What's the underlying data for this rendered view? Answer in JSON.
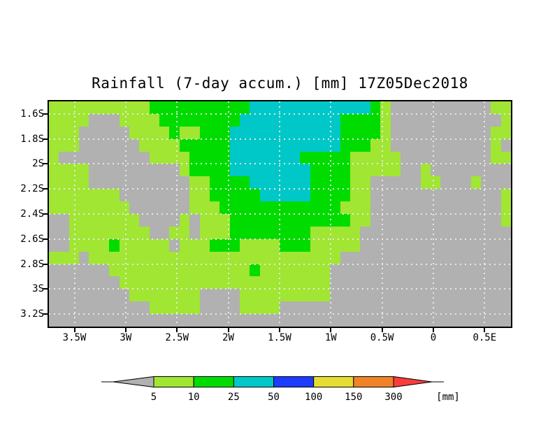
{
  "title": "Rainfall (7-day accum.) [mm] 17Z05Dec2018",
  "chart_data": {
    "type": "heatmap",
    "title": "Rainfall (7-day accum.) [mm] 17Z05Dec2018",
    "variable": "7-day accumulated rainfall",
    "unit_label": "[mm]",
    "timestamp_label": "17Z05Dec2018",
    "x_tick_labels": [
      "3.5W",
      "3W",
      "2.5W",
      "2W",
      "1.5W",
      "1W",
      "0.5W",
      "0",
      "0.5E"
    ],
    "y_tick_labels": [
      "1.6S",
      "1.8S",
      "2S",
      "2.2S",
      "2.4S",
      "2.6S",
      "2.8S",
      "3S",
      "3.2S"
    ],
    "grid_cols": 46,
    "grid_rows": 18,
    "legend_thresholds": [
      "5",
      "10",
      "25",
      "50",
      "100",
      "150",
      "300"
    ],
    "legend_colors": [
      "#b1b1b1",
      "#a0e632",
      "#00dc00",
      "#00c8c8",
      "#1e3cff",
      "#e6dc32",
      "#f08228",
      "#fa3c3c"
    ],
    "legend_arrow_left_color": "#b1b1b1",
    "legend_arrow_right_color": "#fa3c3c",
    "color_key": {
      "X": "#b1b1b1",
      "Y": "#a0e632",
      "G": "#00dc00",
      "C": "#00c8c8"
    },
    "color_meaning": {
      "X": "below 5 mm",
      "Y": "5-10 mm",
      "G": "10-25 mm",
      "C": "25-50 mm"
    },
    "grid": [
      "YYYYYYYYYYGGGGGGGGGGCCCCCCCCCCCCGYXXXXXXXXXXYY",
      "YYYYXXXYYYYGGGGGGGGCCCCCCCCCCGGGGYXXXXXXXXXXXY",
      "YYYXXXXXYYYYGYYGGGCCCCCCCCCCCGGGGYXXXXXXXXXXYY",
      "YYYXXXXXXYYYYGGGGGCCCCCCCCCCCGGGYYXXXXXXXXXXYX",
      "YXXXXXXXXXYYYYGGGGCCCCCCCGGGGGYYYYYXXXXXXXXXYY",
      "YYYYXXXXXXXXXYGGGGCCCCCCCCGGGGYYYYYXXYXXXXXXXX",
      "YYYYXXXXXXXXXXYYGGGGCCCCCCGGGGYYXXXXXYYXXXYXXX",
      "YYYYYYYXXXXXXXYYGGGGGCCCCCGGGGYYXXXXXXXXXXXXXY",
      "YYYYYYYYXXXXXXYYYGGGGGGGGGGGGYYYXXXXXXXXXXXXXY",
      "XXYYYYYYYXXXXYXYYYGGGGGGGGGGGGYYXXXXXXXXXXXXXY",
      "XXYYYYYYYYXXYYXYYYGGGGGGGGYYYYYXXXXXXXXXXXXXXX",
      "XXYYYYGYYYYYXYYYGGGYYYYGGGYYYYYXXXXXXXXXXXXXXX",
      "YYYXYYYYYYYYYYYYYYYYYYYYYYYYYXXXXXXXXXXXXXXXXX",
      "XXXXXXYYYYYYYYYYYYYYGYYYYYYYXXXXXXXXXXXXXXXXXX",
      "XXXXXXXYYYYYYYYYYYYYYYYYYYYYXXXXXXXXXXXXXXXXXX",
      "XXXXXXXXYYYYYYYXXXXYYYYYYYYYXXXXXXXXXXXXXXXXXX",
      "XXXXXXXXXXYYYYYXXXXYYYYXXXXXXXXXXXXXXXXXXXXXXX",
      "XXXXXXXXXXXXXXXXXXXXXXXXXXXXXXXXXXXXXXXXXXXXXX"
    ],
    "grid_note": "rows top-to-bottom lat 1.5S-3.3S, cols left-to-right lon approx 3.8W-0.8E",
    "axis_ranges": {
      "x": [
        "3.5W",
        "0.5E"
      ],
      "y": [
        "1.6S",
        "3.2S"
      ]
    },
    "gridlines": "dotted"
  }
}
